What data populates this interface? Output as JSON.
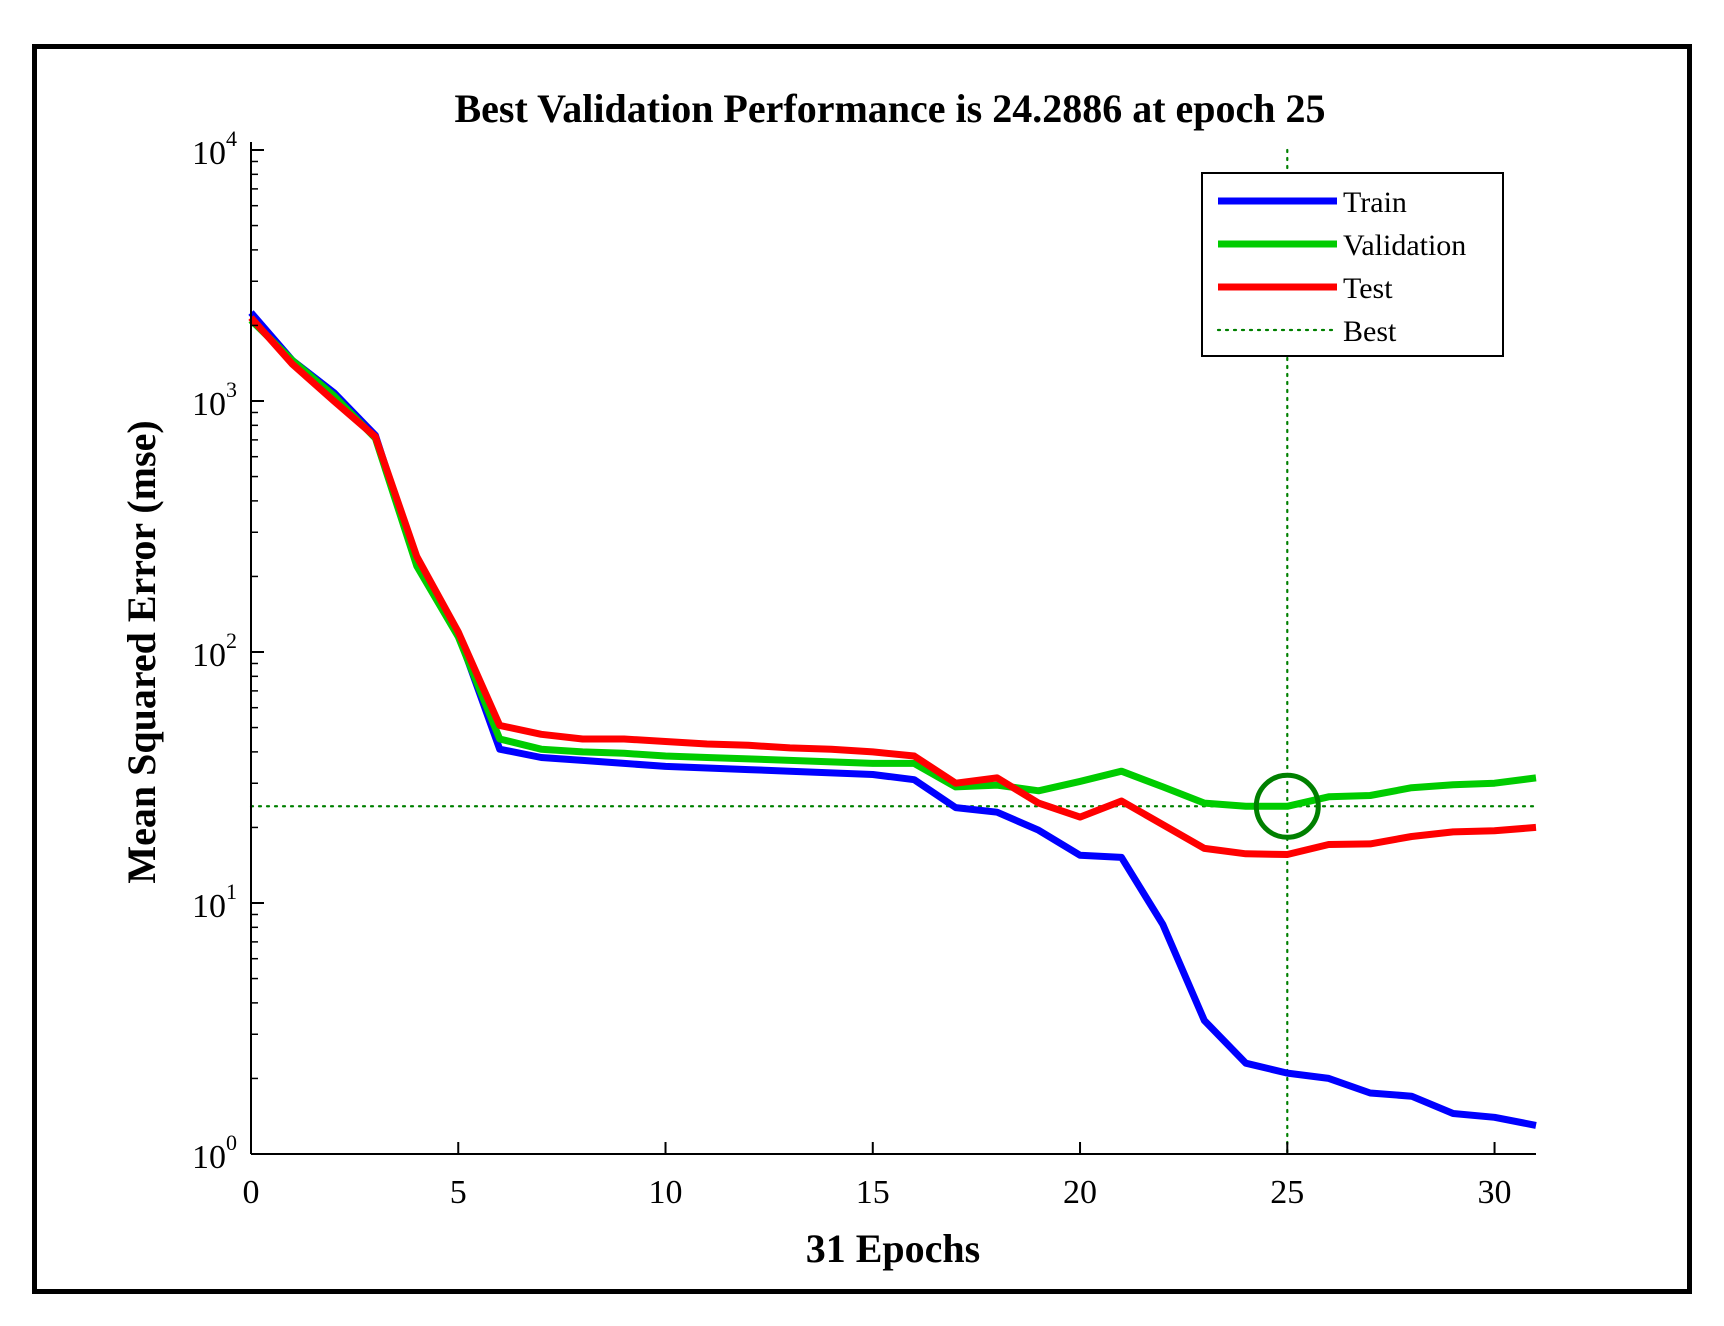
{
  "chart_data": {
    "type": "line",
    "title": "Best Validation Performance is 24.2886 at epoch 25",
    "xlabel": "31 Epochs",
    "ylabel": "Mean Squared Error  (mse)",
    "y_scale": "log",
    "xlim": [
      0,
      31
    ],
    "ylim": [
      1,
      10000
    ],
    "x_ticks": [
      0,
      5,
      10,
      15,
      20,
      25,
      30
    ],
    "y_ticks": [
      {
        "value": 1,
        "base": "10",
        "exp": "0"
      },
      {
        "value": 10,
        "base": "10",
        "exp": "1"
      },
      {
        "value": 100,
        "base": "10",
        "exp": "2"
      },
      {
        "value": 1000,
        "base": "10",
        "exp": "3"
      },
      {
        "value": 10000,
        "base": "10",
        "exp": "4"
      }
    ],
    "grid": false,
    "legend_position": "top-right",
    "x": [
      0,
      1,
      2,
      3,
      4,
      5,
      6,
      7,
      8,
      9,
      10,
      11,
      12,
      13,
      14,
      15,
      16,
      17,
      18,
      19,
      20,
      21,
      22,
      23,
      24,
      25,
      26,
      27,
      28,
      29,
      30,
      31
    ],
    "series": [
      {
        "name": "Train",
        "color": "#0000ff",
        "values": [
          2250,
          1450,
          1080,
          730,
          225,
          118,
          41,
          38,
          37,
          36,
          35,
          34.5,
          34,
          33.5,
          33,
          32.5,
          31,
          24,
          23,
          19.5,
          15.5,
          15.2,
          8.2,
          3.4,
          2.3,
          2.1,
          2.0,
          1.75,
          1.7,
          1.45,
          1.4,
          1.3
        ]
      },
      {
        "name": "Validation",
        "color": "#00cc00",
        "values": [
          2100,
          1450,
          1050,
          710,
          220,
          115,
          45,
          41,
          40,
          39.5,
          38.5,
          38,
          37.5,
          37,
          36.5,
          36,
          36,
          29,
          29.5,
          28,
          30.5,
          33.5,
          29,
          25,
          24.3,
          24.2886,
          26.5,
          26.8,
          28.8,
          29.6,
          30,
          31.5
        ]
      },
      {
        "name": "Test",
        "color": "#ff0000",
        "values": [
          2150,
          1400,
          1000,
          720,
          240,
          120,
          51,
          47,
          45,
          45,
          44,
          43,
          42.5,
          41.5,
          41,
          40,
          38.5,
          30,
          31.5,
          25,
          22,
          25.5,
          20.5,
          16.5,
          15.7,
          15.6,
          17.1,
          17.2,
          18.4,
          19.2,
          19.4,
          20
        ]
      }
    ],
    "best": {
      "label": "Best",
      "epoch": 25,
      "value": 24.2886,
      "color": "#008000"
    }
  }
}
